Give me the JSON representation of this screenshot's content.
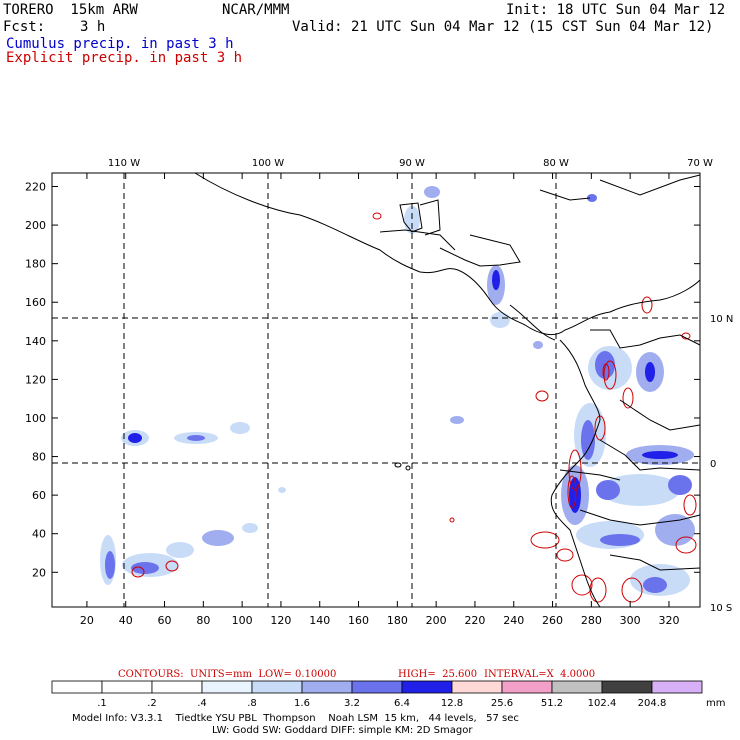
{
  "header": {
    "model": "TORERO  15km ARW",
    "org": "NCAR/MMM",
    "init": "Init: 18 UTC Sun 04 Mar 12",
    "fcst_label": "Fcst:",
    "fcst_value": "3 h",
    "valid": "Valid: 21 UTC Sun 04 Mar 12 (15 CST Sun 04 Mar 12)",
    "cumulus": "Cumulus precip. in past 3 h",
    "explicit": "Explicit precip. in past 3 h"
  },
  "colors": {
    "cumulus_text": "#0000cc",
    "explicit_text": "#cc0000",
    "contour": "#d00000",
    "coast": "#000000"
  },
  "axes": {
    "x_ticks": [
      "20",
      "40",
      "60",
      "80",
      "100",
      "120",
      "140",
      "160",
      "180",
      "200",
      "220",
      "240",
      "260",
      "280",
      "300",
      "320"
    ],
    "y_ticks": [
      "20",
      "40",
      "60",
      "80",
      "100",
      "120",
      "140",
      "160",
      "180",
      "200",
      "220"
    ],
    "lon_labels": [
      "110 W",
      "100 W",
      "90 W",
      "80 W",
      "70 W"
    ],
    "lat_labels": [
      "10 N",
      "0",
      "10 S"
    ]
  },
  "contour_info": {
    "contours": "CONTOURS:  UNITS=mm  LOW= 0.10000",
    "high": "HIGH=  25.600",
    "interval": "INTERVAL=X  4.0000"
  },
  "colorbar": {
    "levels": [
      ".1",
      ".2",
      ".4",
      ".8",
      "1.6",
      "3.2",
      "6.4",
      "12.8",
      "25.6",
      "51.2",
      "102.4",
      "204.8"
    ],
    "unit": "mm",
    "colors": [
      "#ffffff",
      "#ffffff",
      "#ffffff",
      "#eaf4ff",
      "#c8dcf8",
      "#a0aef0",
      "#6a72ec",
      "#2020e8",
      "#ffd8d8",
      "#f3a0c8",
      "#c0c0c0",
      "#404040",
      "#d8b0f8"
    ]
  },
  "footer": {
    "line1": "Model Info: V3.3.1    Tiedtke YSU PBL  Thompson    Noah LSM  15 km,   44 levels,   57 sec",
    "line2": "LW: Godd SW: Goddard DIFF: simple KM: 2D Smagor"
  }
}
